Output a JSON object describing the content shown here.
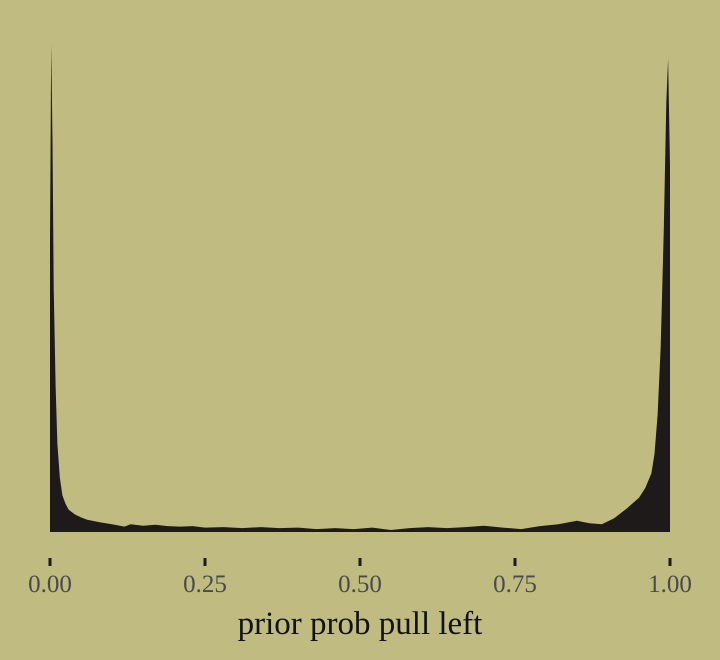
{
  "colors": {
    "background": "#c0bb80",
    "fill": "#1e1a1a",
    "tick_label": "#4a4a4a",
    "axis_title": "#111111"
  },
  "chart_data": {
    "type": "area",
    "title": "",
    "xlabel": "prior prob pull left",
    "ylabel": "",
    "xlim": [
      0,
      1
    ],
    "ylim": [
      0,
      1
    ],
    "grid": false,
    "y_axis_shown": false,
    "x_ticks": [
      0,
      0.25,
      0.5,
      0.75,
      1
    ],
    "x_tick_labels": [
      "0.00",
      "0.25",
      "0.50",
      "0.75",
      "1.00"
    ],
    "x": [
      0.0,
      0.002,
      0.004,
      0.006,
      0.009,
      0.012,
      0.016,
      0.02,
      0.025,
      0.03,
      0.04,
      0.05,
      0.06,
      0.08,
      0.1,
      0.12,
      0.13,
      0.15,
      0.17,
      0.19,
      0.21,
      0.23,
      0.25,
      0.28,
      0.31,
      0.34,
      0.37,
      0.4,
      0.43,
      0.46,
      0.49,
      0.52,
      0.55,
      0.58,
      0.61,
      0.64,
      0.67,
      0.7,
      0.73,
      0.76,
      0.79,
      0.82,
      0.85,
      0.87,
      0.89,
      0.91,
      0.93,
      0.95,
      0.96,
      0.97,
      0.975,
      0.98,
      0.985,
      0.99,
      0.994,
      0.997,
      1.0
    ],
    "y": [
      0.6,
      1.0,
      0.8,
      0.5,
      0.3,
      0.18,
      0.11,
      0.075,
      0.058,
      0.046,
      0.036,
      0.03,
      0.025,
      0.02,
      0.016,
      0.011,
      0.016,
      0.013,
      0.015,
      0.012,
      0.011,
      0.012,
      0.009,
      0.01,
      0.008,
      0.01,
      0.008,
      0.009,
      0.006,
      0.008,
      0.006,
      0.009,
      0.004,
      0.008,
      0.01,
      0.008,
      0.01,
      0.013,
      0.009,
      0.006,
      0.012,
      0.016,
      0.023,
      0.018,
      0.016,
      0.028,
      0.048,
      0.07,
      0.09,
      0.12,
      0.16,
      0.24,
      0.38,
      0.62,
      0.88,
      0.97,
      0.75
    ]
  }
}
